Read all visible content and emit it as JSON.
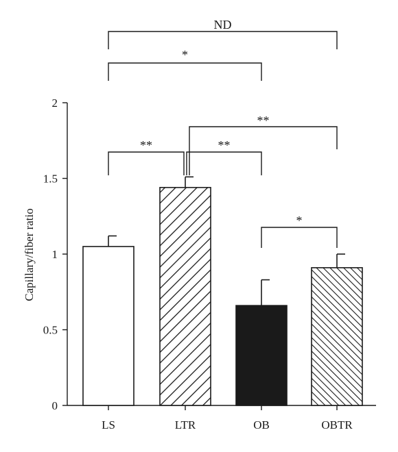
{
  "chart_data": {
    "type": "bar",
    "title": "",
    "xlabel": "",
    "ylabel": "Capillary/fiber ratio",
    "ylim": [
      0,
      2
    ],
    "yticks": [
      0,
      0.5,
      1,
      1.5,
      2
    ],
    "ytick_labels": [
      "0",
      "0.5",
      "1",
      "1.5",
      "2"
    ],
    "categories": [
      "LS",
      "LTR",
      "OB",
      "OBTR"
    ],
    "values": [
      1.05,
      1.44,
      0.66,
      0.91
    ],
    "errors": [
      0.07,
      0.07,
      0.17,
      0.09
    ],
    "fills": [
      "white",
      "hatch-wide",
      "black",
      "hatch-fine"
    ],
    "grid": false,
    "significance": [
      {
        "from": 0,
        "to": 3,
        "label": "ND"
      },
      {
        "from": 0,
        "to": 2,
        "label": "*"
      },
      {
        "from": 0,
        "to": 1,
        "label": "**"
      },
      {
        "from": 1,
        "to": 2,
        "label": "**"
      },
      {
        "from": 1,
        "to": 3,
        "label": "**"
      },
      {
        "from": 2,
        "to": 3,
        "label": "*"
      }
    ]
  },
  "colors": {
    "ink": "#1a1a1a",
    "background": "#ffffff"
  }
}
